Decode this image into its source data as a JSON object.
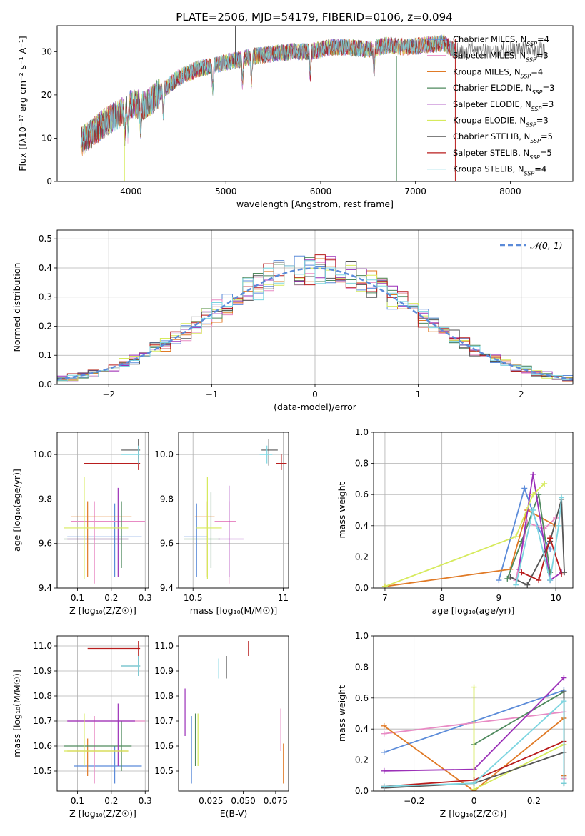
{
  "figure": {
    "title": "PLATE=2506, MJD=54179, FIBERID=0106, z=0.094"
  },
  "models": [
    {
      "name": "Chabrier MILES",
      "nssp": "4",
      "color": "#5b8bd9"
    },
    {
      "name": "Salpeter MILES",
      "nssp": "3",
      "color": "#e88bc4"
    },
    {
      "name": "Kroupa MILES",
      "nssp": "4",
      "color": "#e07a26"
    },
    {
      "name": "Chabrier ELODIE",
      "nssp": "3",
      "color": "#4f8a5e"
    },
    {
      "name": "Salpeter ELODIE",
      "nssp": "3",
      "color": "#9b30b8"
    },
    {
      "name": "Kroupa ELODIE",
      "nssp": "3",
      "color": "#d6ea5c"
    },
    {
      "name": "Chabrier STELIB",
      "nssp": "5",
      "color": "#555555"
    },
    {
      "name": "Salpeter STELIB",
      "nssp": "5",
      "color": "#b81d1d"
    },
    {
      "name": "Kroupa STELIB",
      "nssp": "4",
      "color": "#7dd5e0"
    }
  ],
  "chart_data": [
    {
      "id": "spectrum",
      "type": "line",
      "xlabel": "wavelength [Angstrom, rest frame]",
      "ylabel": "Flux [fλ10⁻¹⁷ erg cm⁻² s⁻¹ A⁻¹]",
      "xlim": [
        3220,
        8660
      ],
      "ylim": [
        0,
        36
      ],
      "xticks": [
        4000,
        5000,
        6000,
        7000,
        8000
      ],
      "yticks": [
        0,
        10,
        20,
        30
      ],
      "grid": false,
      "legend": "right",
      "continuum": {
        "x": [
          3470,
          3600,
          3750,
          3900,
          4000,
          4150,
          4300,
          4500,
          4700,
          4900,
          5100,
          5300,
          5500,
          5700,
          5900,
          6100,
          6300,
          6500,
          6700,
          6900,
          7100,
          7300,
          7420,
          7600,
          7800,
          8000,
          8200,
          8380
        ],
        "y": [
          9,
          11.5,
          14,
          16,
          18,
          17.5,
          20.5,
          24,
          26,
          27,
          28,
          29,
          29.5,
          30,
          30,
          31,
          31,
          30.5,
          31.5,
          31,
          31.5,
          32,
          30,
          30.5,
          30,
          30.5,
          31,
          30
        ]
      },
      "absorption_lines": [
        3933,
        3968,
        4101,
        4340,
        4861,
        5175,
        5270,
        5890,
        6563
      ]
    },
    {
      "id": "residuals",
      "type": "histogram",
      "xlabel": "(data-model)/error",
      "ylabel": "Normed distribution",
      "xlim": [
        -2.5,
        2.5
      ],
      "ylim": [
        0,
        0.53
      ],
      "xticks": [
        -2,
        -1,
        0,
        1,
        2
      ],
      "yticks": [
        0.0,
        0.1,
        0.2,
        0.3,
        0.4,
        0.5
      ],
      "grid": true,
      "legend": "top-right",
      "gaussian_label": "𝒩(0, 1)",
      "bin_width": 0.1
    },
    {
      "id": "Z-age",
      "type": "scatter",
      "xlabel": "Z [log₁₀(Z/Z☉)]",
      "ylabel": "age  [log₁₀(age/yr)]",
      "xlim": [
        0.04,
        0.31
      ],
      "ylim": [
        9.4,
        10.1
      ],
      "xticks": [
        0.1,
        0.2,
        0.3
      ],
      "yticks": [
        9.4,
        9.6,
        9.8,
        10.0
      ],
      "grid": true,
      "points": [
        {
          "model": 0,
          "x": 0.21,
          "y": 9.63,
          "xerr": [
            0.07,
            0.29
          ],
          "yerr": [
            9.45,
            9.78
          ]
        },
        {
          "model": 1,
          "x": 0.15,
          "y": 9.7,
          "xerr": [
            0.08,
            0.3
          ],
          "yerr": [
            9.42,
            9.79
          ]
        },
        {
          "model": 2,
          "x": 0.13,
          "y": 9.72,
          "xerr": [
            0.08,
            0.26
          ],
          "yerr": [
            9.45,
            9.79
          ]
        },
        {
          "model": 3,
          "x": 0.23,
          "y": 9.62,
          "xerr": [
            0.06,
            0.25
          ],
          "yerr": [
            9.49,
            9.79
          ]
        },
        {
          "model": 4,
          "x": 0.22,
          "y": 9.62,
          "xerr": [
            0.07,
            0.25
          ],
          "yerr": [
            9.45,
            9.85
          ]
        },
        {
          "model": 5,
          "x": 0.12,
          "y": 9.67,
          "xerr": [
            0.06,
            0.25
          ],
          "yerr": [
            9.44,
            9.9
          ]
        },
        {
          "model": 6,
          "x": 0.28,
          "y": 10.02,
          "xerr": [
            0.23,
            0.285
          ],
          "yerr": [
            9.98,
            10.07
          ]
        },
        {
          "model": 7,
          "x": 0.28,
          "y": 9.96,
          "xerr": [
            0.12,
            0.285
          ],
          "yerr": [
            9.93,
            10.0
          ]
        },
        {
          "model": 8,
          "x": 0.28,
          "y": 10.0,
          "xerr": [
            0.23,
            0.285
          ],
          "yerr": [
            9.96,
            10.04
          ]
        }
      ]
    },
    {
      "id": "mass-age",
      "type": "scatter",
      "xlabel": "mass [log₁₀(M/M☉)]",
      "ylabel": "",
      "xlim": [
        10.42,
        11.03
      ],
      "ylim": [
        9.4,
        10.1
      ],
      "xticks": [
        10.5,
        11.0
      ],
      "yticks": [
        9.4,
        9.6,
        9.8,
        10.0
      ],
      "grid": true,
      "points": [
        {
          "model": 0,
          "x": 10.52,
          "y": 9.63,
          "xerr": [
            10.45,
            10.58
          ],
          "yerr": [
            9.45,
            9.78
          ]
        },
        {
          "model": 1,
          "x": 10.7,
          "y": 9.7,
          "xerr": [
            10.62,
            10.74
          ],
          "yerr": [
            9.42,
            9.79
          ]
        },
        {
          "model": 2,
          "x": 10.58,
          "y": 9.72,
          "xerr": [
            10.51,
            10.62
          ],
          "yerr": [
            9.45,
            9.79
          ]
        },
        {
          "model": 3,
          "x": 10.6,
          "y": 9.62,
          "xerr": [
            10.45,
            10.65
          ],
          "yerr": [
            9.49,
            9.83
          ]
        },
        {
          "model": 4,
          "x": 10.7,
          "y": 9.62,
          "xerr": [
            10.64,
            10.78
          ],
          "yerr": [
            9.45,
            9.86
          ]
        },
        {
          "model": 5,
          "x": 10.58,
          "y": 9.67,
          "xerr": [
            10.52,
            10.66
          ],
          "yerr": [
            9.44,
            9.9
          ]
        },
        {
          "model": 6,
          "x": 10.92,
          "y": 10.02,
          "xerr": [
            10.88,
            10.97
          ],
          "yerr": [
            9.95,
            10.07
          ]
        },
        {
          "model": 7,
          "x": 10.99,
          "y": 9.96,
          "xerr": [
            10.96,
            11.02
          ],
          "yerr": [
            9.93,
            10.0
          ]
        },
        {
          "model": 8,
          "x": 10.91,
          "y": 10.0,
          "xerr": [
            10.87,
            10.94
          ],
          "yerr": [
            9.96,
            10.04
          ]
        }
      ]
    },
    {
      "id": "age-weight",
      "type": "line",
      "xlabel": "age  [log₁₀(age/yr)]",
      "ylabel": "mass weight",
      "xlim": [
        6.8,
        10.3
      ],
      "ylim": [
        0,
        1
      ],
      "xticks": [
        7,
        8,
        9,
        10
      ],
      "yticks": [
        0.0,
        0.2,
        0.4,
        0.6,
        0.8,
        1.0
      ],
      "grid": true,
      "series": [
        {
          "model": 0,
          "x": [
            9.0,
            9.45,
            9.7,
            9.9
          ],
          "y": [
            0.05,
            0.64,
            0.38,
            0.25
          ]
        },
        {
          "model": 1,
          "x": [
            9.3,
            9.5,
            9.8,
            10.0
          ],
          "y": [
            0.05,
            0.42,
            0.38,
            0.45
          ]
        },
        {
          "model": 2,
          "x": [
            7.0,
            9.2,
            9.5,
            10.0
          ],
          "y": [
            0.01,
            0.12,
            0.5,
            0.4
          ]
        },
        {
          "model": 3,
          "x": [
            9.15,
            9.4,
            9.7,
            9.9
          ],
          "y": [
            0.06,
            0.3,
            0.6,
            0.1
          ]
        },
        {
          "model": 4,
          "x": [
            9.35,
            9.6,
            9.9,
            10.1
          ],
          "y": [
            0.12,
            0.73,
            0.05,
            0.1
          ]
        },
        {
          "model": 5,
          "x": [
            7.0,
            9.3,
            9.6,
            9.8
          ],
          "y": [
            0.01,
            0.33,
            0.6,
            0.67
          ]
        },
        {
          "model": 6,
          "x": [
            9.2,
            9.5,
            9.9,
            10.1,
            10.15
          ],
          "y": [
            0.07,
            0.02,
            0.3,
            0.57,
            0.1
          ]
        },
        {
          "model": 7,
          "x": [
            9.4,
            9.7,
            9.9,
            10.1
          ],
          "y": [
            0.1,
            0.05,
            0.32,
            0.09
          ]
        },
        {
          "model": 8,
          "x": [
            9.3,
            9.6,
            9.9,
            10.05,
            10.1
          ],
          "y": [
            0.02,
            0.5,
            0.05,
            0.4,
            0.58
          ]
        }
      ]
    },
    {
      "id": "Z-mass",
      "type": "scatter",
      "xlabel": "Z [log₁₀(Z/Z☉)]",
      "ylabel": "mass [log₁₀(M/M☉)]",
      "xlim": [
        0.04,
        0.31
      ],
      "ylim": [
        10.42,
        11.04
      ],
      "xticks": [
        0.1,
        0.2,
        0.3
      ],
      "yticks": [
        10.5,
        10.6,
        10.7,
        10.8,
        10.9,
        11.0
      ],
      "grid": true,
      "points": [
        {
          "model": 0,
          "x": 0.21,
          "y": 10.52,
          "xerr": [
            0.09,
            0.29
          ],
          "yerr": [
            10.45,
            10.6
          ]
        },
        {
          "model": 1,
          "x": 0.15,
          "y": 10.7,
          "xerr": [
            0.07,
            0.3
          ],
          "yerr": [
            10.45,
            10.72
          ]
        },
        {
          "model": 2,
          "x": 0.13,
          "y": 10.58,
          "xerr": [
            0.07,
            0.25
          ],
          "yerr": [
            10.48,
            10.63
          ]
        },
        {
          "model": 3,
          "x": 0.23,
          "y": 10.6,
          "xerr": [
            0.06,
            0.26
          ],
          "yerr": [
            10.5,
            10.7
          ]
        },
        {
          "model": 4,
          "x": 0.22,
          "y": 10.7,
          "xerr": [
            0.07,
            0.27
          ],
          "yerr": [
            10.52,
            10.77
          ]
        },
        {
          "model": 5,
          "x": 0.12,
          "y": 10.58,
          "xerr": [
            0.06,
            0.25
          ],
          "yerr": [
            10.52,
            10.73
          ]
        },
        {
          "model": 6,
          "x": 0.28,
          "y": 10.92,
          "xerr": [
            0.23,
            0.285
          ],
          "yerr": [
            10.88,
            10.96
          ]
        },
        {
          "model": 7,
          "x": 0.28,
          "y": 10.99,
          "xerr": [
            0.13,
            0.285
          ],
          "yerr": [
            10.96,
            11.02
          ]
        },
        {
          "model": 8,
          "x": 0.28,
          "y": 10.92,
          "xerr": [
            0.23,
            0.285
          ],
          "yerr": [
            10.88,
            10.96
          ]
        }
      ]
    },
    {
      "id": "ebv-mass",
      "type": "scatter",
      "xlabel": "E(B-V)",
      "ylabel": "",
      "xlim": [
        0.0,
        0.085
      ],
      "ylim": [
        10.42,
        11.04
      ],
      "xticks": [
        0.025,
        0.05,
        0.075
      ],
      "xticklabels": [
        "0.025",
        "0.050",
        "0.075"
      ],
      "yticks": [
        10.5,
        10.6,
        10.7,
        10.8,
        10.9,
        11.0
      ],
      "grid": false,
      "points": [
        {
          "model": 0,
          "x": 0.01,
          "y": 10.5,
          "yerr": [
            10.45,
            10.72
          ]
        },
        {
          "model": 1,
          "x": 0.079,
          "y": 10.65,
          "yerr": [
            10.58,
            10.75
          ]
        },
        {
          "model": 2,
          "x": 0.081,
          "y": 10.53,
          "yerr": [
            10.45,
            10.61
          ]
        },
        {
          "model": 3,
          "x": 0.013,
          "y": 10.57,
          "yerr": [
            10.52,
            10.73
          ]
        },
        {
          "model": 4,
          "x": 0.005,
          "y": 10.7,
          "yerr": [
            10.64,
            10.83
          ]
        },
        {
          "model": 5,
          "x": 0.015,
          "y": 10.6,
          "yerr": [
            10.52,
            10.73
          ]
        },
        {
          "model": 6,
          "x": 0.037,
          "y": 10.92,
          "yerr": [
            10.87,
            10.96
          ]
        },
        {
          "model": 7,
          "x": 0.054,
          "y": 10.99,
          "yerr": [
            10.96,
            11.02
          ]
        },
        {
          "model": 8,
          "x": 0.031,
          "y": 10.92,
          "yerr": [
            10.87,
            10.95
          ]
        }
      ]
    },
    {
      "id": "Z-weight",
      "type": "line",
      "xlabel": "Z [log₁₀(Z/Z☉)]",
      "ylabel": "mass weight",
      "xlim": [
        -0.335,
        0.33
      ],
      "ylim": [
        0,
        1
      ],
      "xticks": [
        -0.2,
        0.0,
        0.2
      ],
      "yticks": [
        0.0,
        0.2,
        0.4,
        0.6,
        0.8,
        1.0
      ],
      "grid": true,
      "series": [
        {
          "model": 0,
          "x": [
            -0.3,
            0.3,
            0.3
          ],
          "y": [
            0.25,
            0.65,
            0.05
          ]
        },
        {
          "model": 1,
          "x": [
            -0.3,
            0.3,
            0.3
          ],
          "y": [
            0.37,
            0.51,
            0.08
          ]
        },
        {
          "model": 2,
          "x": [
            -0.3,
            0.0,
            0.3,
            0.3
          ],
          "y": [
            0.42,
            0.0,
            0.47,
            0.1
          ]
        },
        {
          "model": 3,
          "x": [
            0.0,
            0.3,
            0.3
          ],
          "y": [
            0.3,
            0.64,
            0.05
          ]
        },
        {
          "model": 4,
          "x": [
            -0.3,
            0.0,
            0.3
          ],
          "y": [
            0.13,
            0.14,
            0.73
          ]
        },
        {
          "model": 5,
          "x": [
            0.0,
            0.0,
            0.3
          ],
          "y": [
            0.67,
            0.01,
            0.3
          ]
        },
        {
          "model": 6,
          "x": [
            -0.3,
            0.0,
            0.3,
            0.3
          ],
          "y": [
            0.02,
            0.05,
            0.25,
            0.64
          ]
        },
        {
          "model": 7,
          "x": [
            -0.3,
            0.0,
            0.3,
            0.3
          ],
          "y": [
            0.03,
            0.07,
            0.32,
            0.09
          ]
        },
        {
          "model": 8,
          "x": [
            -0.3,
            0.0,
            0.3,
            0.3
          ],
          "y": [
            0.03,
            0.05,
            0.58,
            0.05
          ]
        }
      ]
    }
  ]
}
